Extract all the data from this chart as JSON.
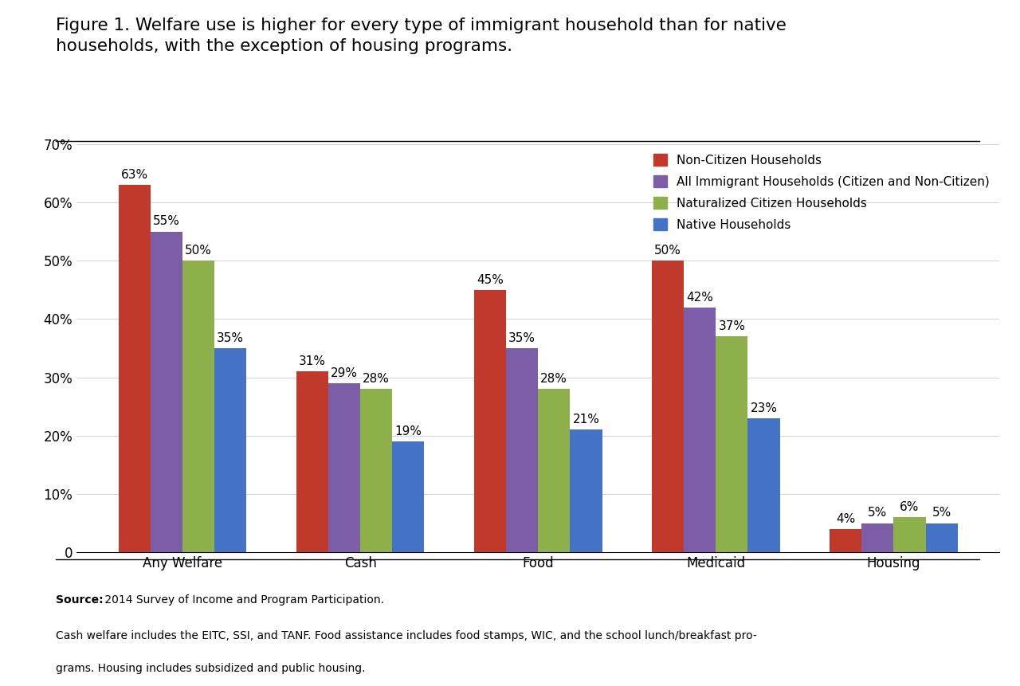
{
  "title_line1": "Figure 1. Welfare use is higher for every type of immigrant household than for native",
  "title_line2": "households, with the exception of housing programs.",
  "categories": [
    "Any Welfare",
    "Cash",
    "Food",
    "Medicaid",
    "Housing"
  ],
  "series": {
    "Non-Citizen Households": [
      63,
      31,
      45,
      50,
      4
    ],
    "All Immigrant Households (Citizen and Non-Citizen)": [
      55,
      29,
      35,
      42,
      5
    ],
    "Naturalized Citizen Households": [
      50,
      28,
      28,
      37,
      6
    ],
    "Native Households": [
      35,
      19,
      21,
      23,
      5
    ]
  },
  "colors": {
    "Non-Citizen Households": "#C0392B",
    "All Immigrant Households (Citizen and Non-Citizen)": "#7B5EA7",
    "Naturalized Citizen Households": "#8DB04A",
    "Native Households": "#4472C4"
  },
  "ylim": [
    0,
    70
  ],
  "yticks": [
    0,
    10,
    20,
    30,
    40,
    50,
    60,
    70
  ],
  "ytick_labels": [
    "0",
    "10%",
    "20%",
    "30%",
    "40%",
    "50%",
    "60%",
    "70%"
  ],
  "bar_width": 0.18,
  "source_bold": "Source:",
  "source_rest": " 2014 Survey of Income and Program Participation.",
  "source_line2": "Cash welfare includes the EITC, SSI, and TANF. Food assistance includes food stamps, WIC, and the school lunch/breakfast pro-",
  "source_line3": "grams. Housing includes subsidized and public housing.",
  "background_color": "#FFFFFF",
  "title_fontsize": 15.5,
  "axis_fontsize": 12,
  "label_fontsize": 11,
  "legend_fontsize": 11,
  "source_fontsize": 10
}
